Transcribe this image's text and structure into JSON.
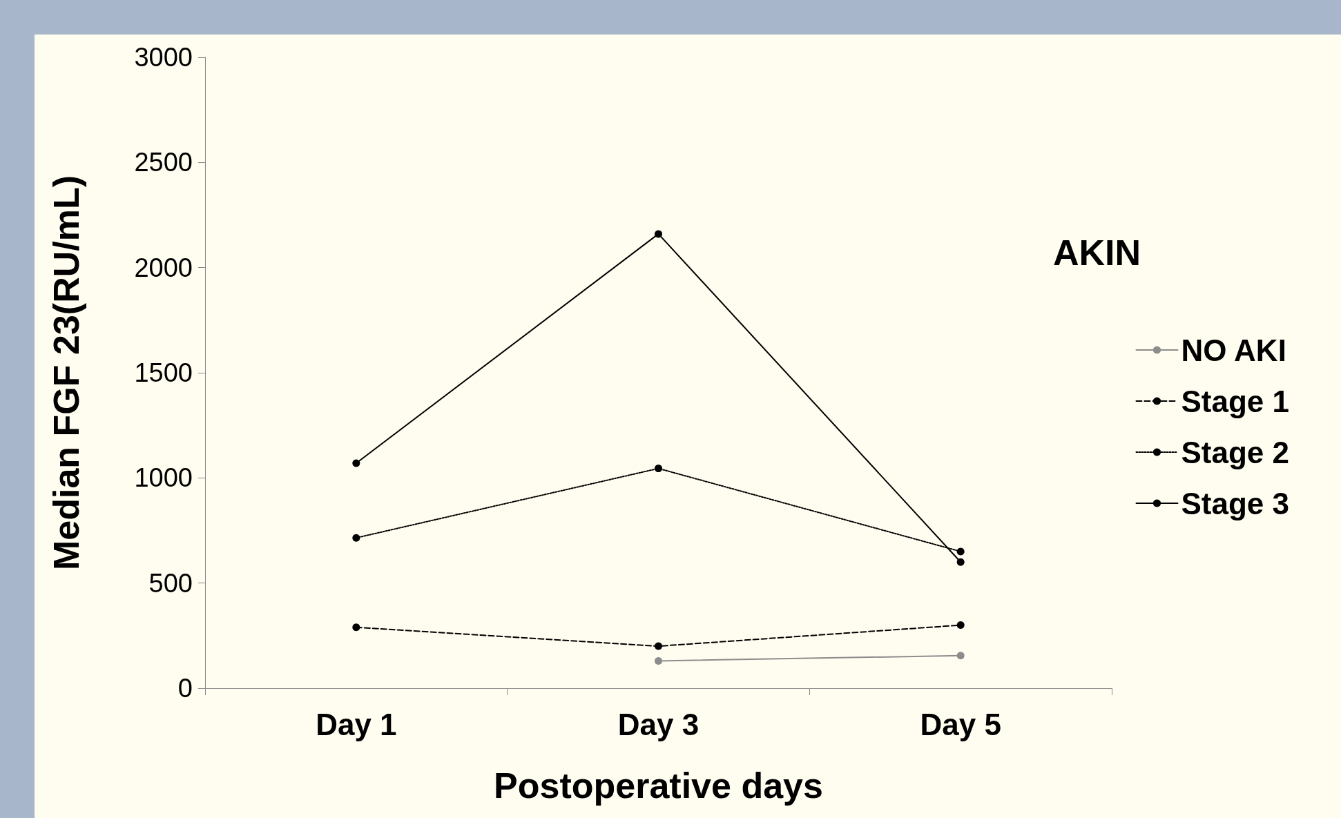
{
  "chart_data": {
    "type": "line",
    "xlabel": "Postoperative days",
    "ylabel": "Median FGF 23(RU/mL)",
    "legend_title": "AKIN",
    "categories": [
      "Day 1",
      "Day 3",
      "Day 5"
    ],
    "series": [
      {
        "name": "NO AKI",
        "color": "#8c8c8c",
        "line_style": "solid",
        "values": [
          null,
          130,
          155
        ]
      },
      {
        "name": "Stage 1",
        "color": "#000000",
        "line_style": "dashed",
        "values": [
          290,
          200,
          300
        ]
      },
      {
        "name": "Stage 2",
        "color": "#000000",
        "line_style": "dotted",
        "values": [
          715,
          1045,
          650
        ]
      },
      {
        "name": "Stage 3",
        "color": "#000000",
        "line_style": "solid",
        "values": [
          1070,
          2160,
          600
        ]
      }
    ],
    "ylim": [
      0,
      3000
    ],
    "yticks": [
      0,
      500,
      1000,
      1500,
      2000,
      2500,
      3000
    ],
    "grid": false,
    "legend": "right",
    "marker": "circle"
  }
}
